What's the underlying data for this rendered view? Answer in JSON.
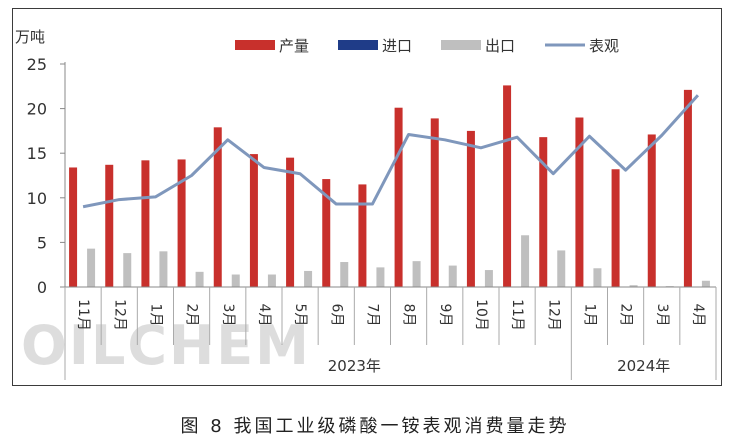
{
  "caption": "图 8  我国工业级磷酸一铵表观消费量走势",
  "watermark": "OILCHEM",
  "chart_data": {
    "type": "bar",
    "unit_label": "万吨",
    "categories": [
      "11月",
      "12月",
      "1月",
      "2月",
      "3月",
      "4月",
      "5月",
      "6月",
      "7月",
      "8月",
      "9月",
      "10月",
      "11月",
      "12月",
      "1月",
      "2月",
      "3月",
      "4月"
    ],
    "year_groups": [
      {
        "label": "2023年",
        "start": 2,
        "end": 13
      },
      {
        "label": "2024年",
        "start": 14,
        "end": 17
      }
    ],
    "ylim": [
      0,
      25
    ],
    "yticks": [
      0,
      5,
      10,
      15,
      20,
      25
    ],
    "legend_position": "top",
    "series": [
      {
        "name": "产量",
        "type": "bar",
        "color": "#c8302c",
        "values": [
          13.4,
          13.7,
          14.2,
          14.3,
          17.9,
          14.9,
          14.5,
          12.1,
          11.5,
          20.1,
          18.9,
          17.5,
          22.6,
          16.8,
          19.0,
          13.2,
          17.1,
          22.1
        ]
      },
      {
        "name": "进口",
        "type": "bar",
        "color": "#1f3c88",
        "values": [
          0,
          0,
          0,
          0,
          0,
          0,
          0,
          0,
          0,
          0,
          0,
          0,
          0,
          0,
          0,
          0,
          0,
          0
        ]
      },
      {
        "name": "出口",
        "type": "bar",
        "color": "#bfbfbf",
        "values": [
          4.3,
          3.8,
          4.0,
          1.7,
          1.4,
          1.4,
          1.8,
          2.8,
          2.2,
          2.9,
          2.4,
          1.9,
          5.8,
          4.1,
          2.1,
          0.2,
          0.1,
          0.7
        ]
      },
      {
        "name": "表观",
        "type": "line",
        "color": "#7f97bc",
        "values": [
          9.0,
          9.8,
          10.1,
          12.5,
          16.5,
          13.4,
          12.7,
          9.3,
          9.3,
          17.1,
          16.5,
          15.6,
          16.8,
          12.7,
          16.9,
          13.1,
          17.0,
          21.5
        ]
      }
    ]
  }
}
